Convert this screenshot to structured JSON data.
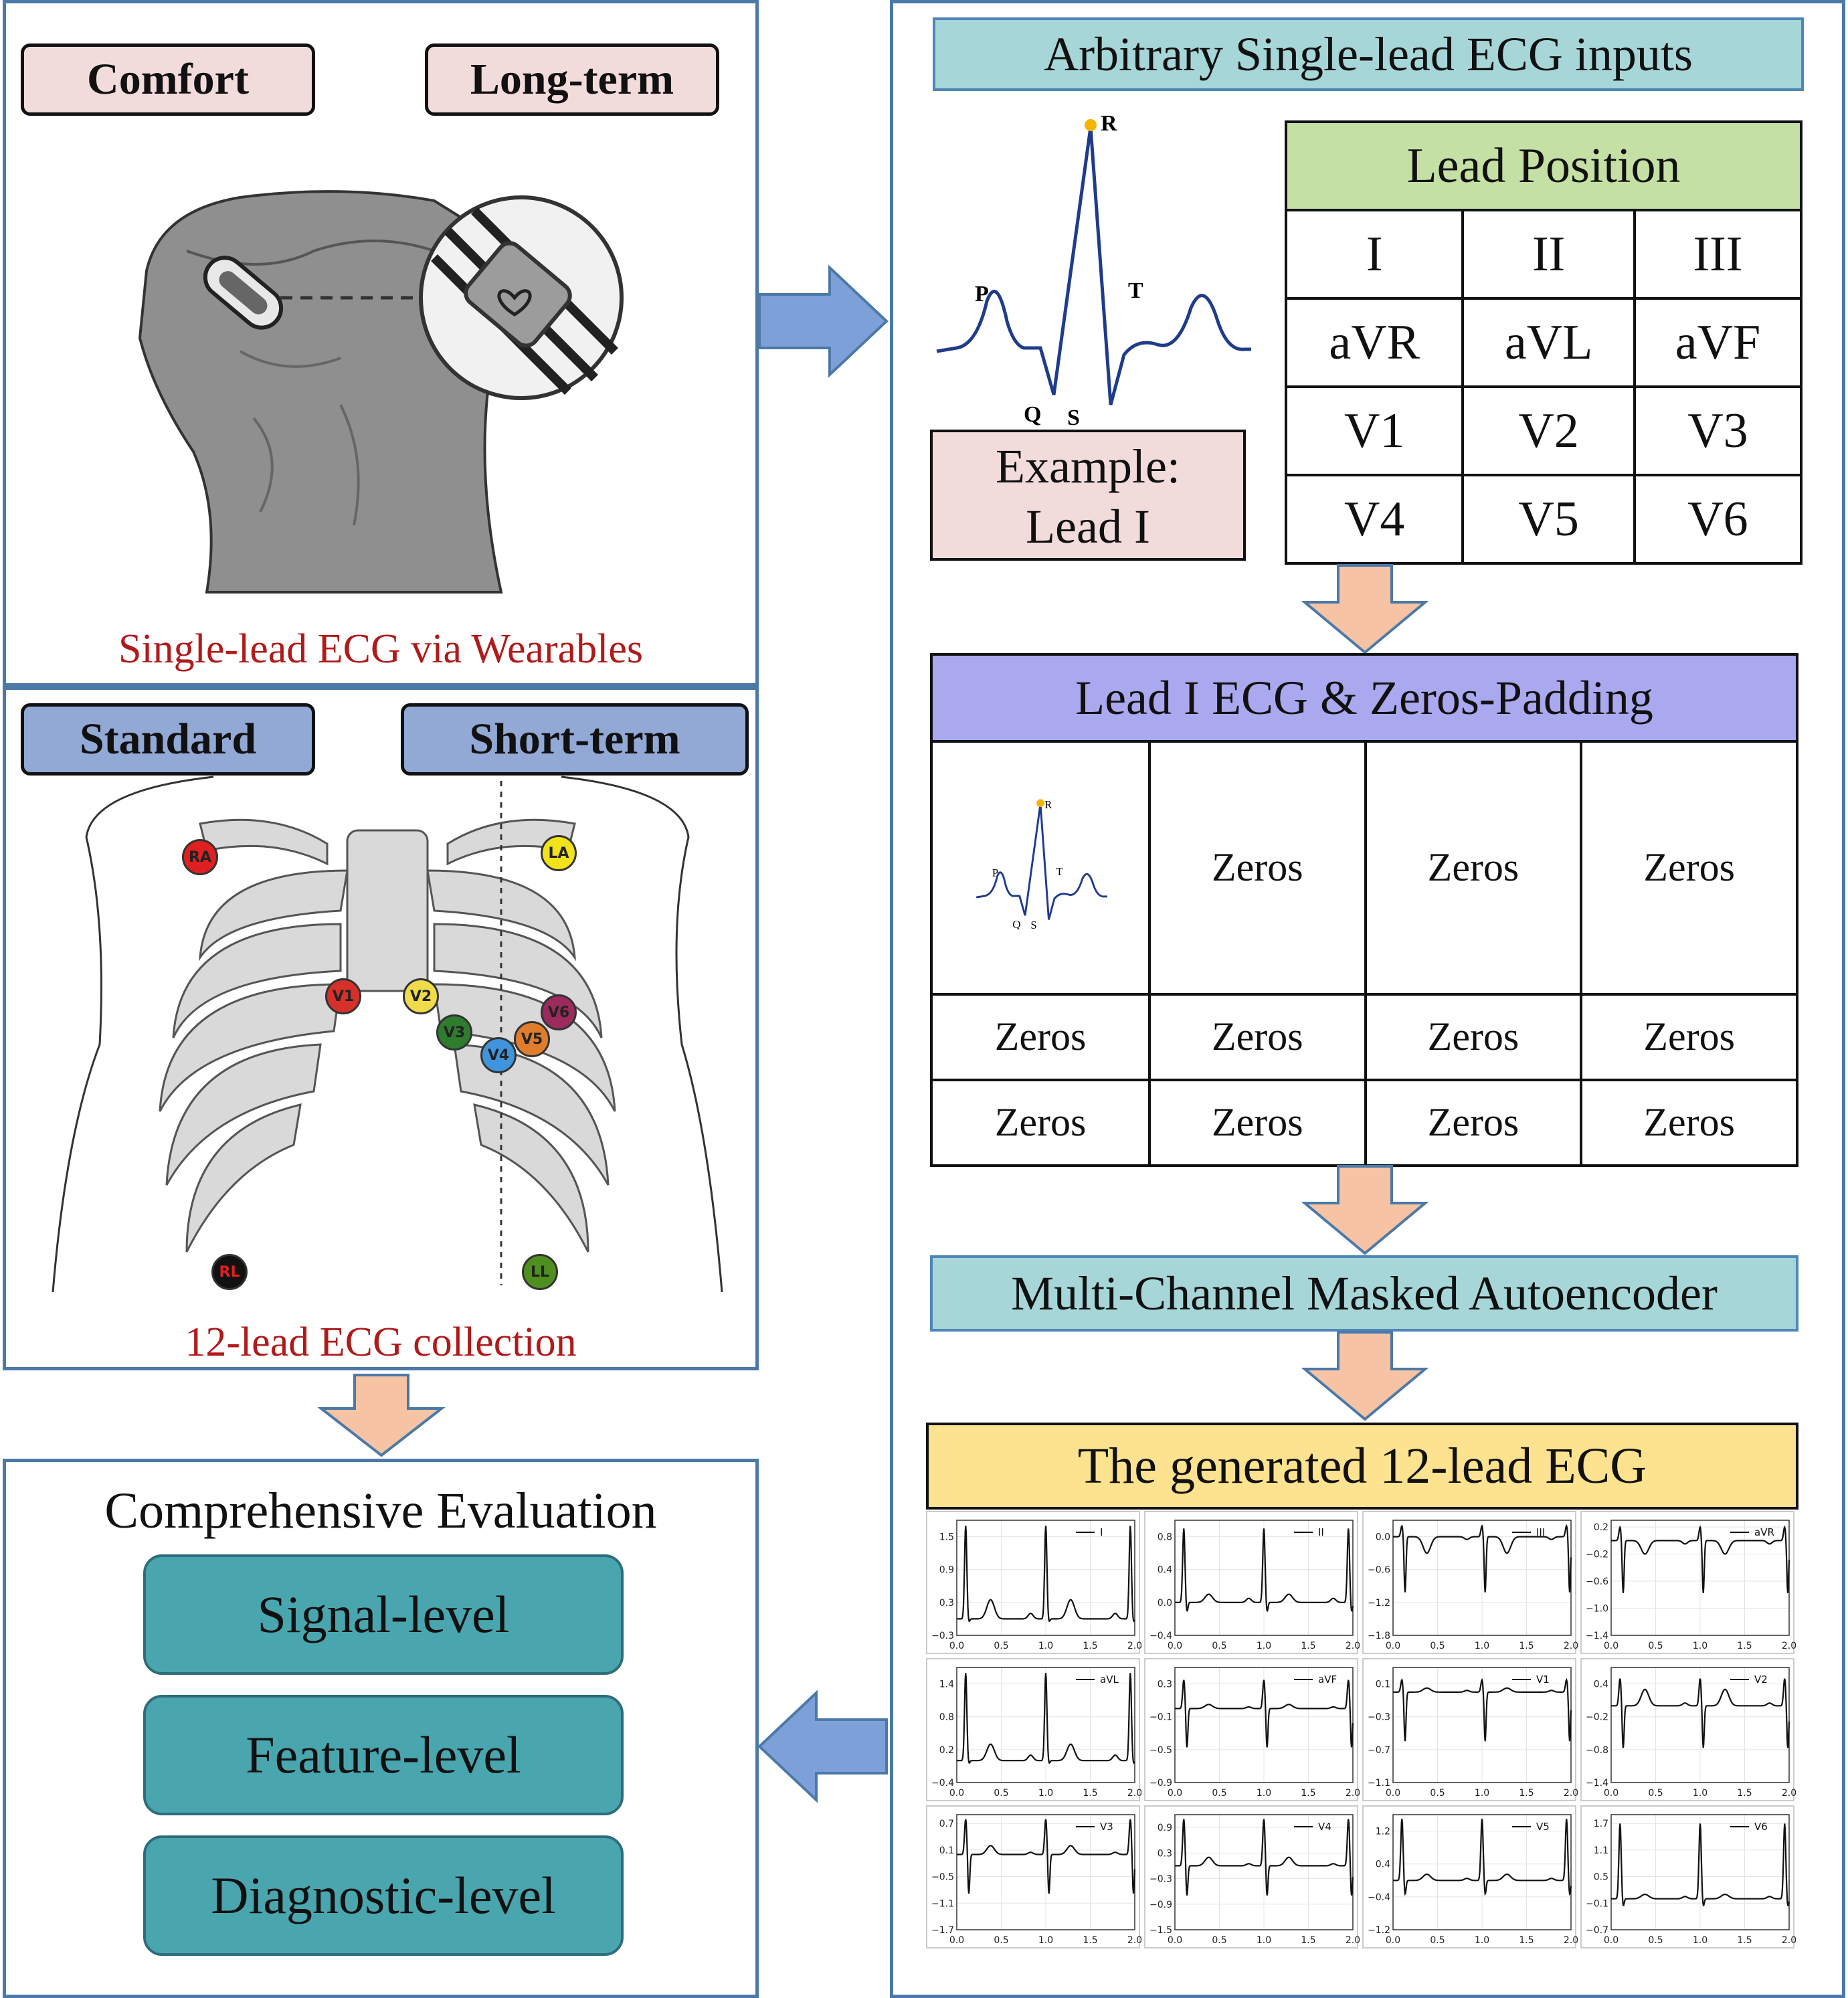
{
  "wearable_panel": {
    "tag_left": "Comfort",
    "tag_right": "Long-term",
    "caption": "Single-lead ECG via Wearables",
    "device_icon": "heart-icon"
  },
  "twelve_lead_panel": {
    "tag_left": "Standard",
    "tag_right": "Short-term",
    "caption": "12-lead ECG collection",
    "electrodes": [
      {
        "label": "RA",
        "color": "#e02020"
      },
      {
        "label": "LA",
        "color": "#f2e21a"
      },
      {
        "label": "V1",
        "color": "#d6302a"
      },
      {
        "label": "V2",
        "color": "#f0dc4a"
      },
      {
        "label": "V3",
        "color": "#2e7d2e"
      },
      {
        "label": "V4",
        "color": "#3f95dd"
      },
      {
        "label": "V5",
        "color": "#e07d2c"
      },
      {
        "label": "V6",
        "color": "#9c2a5c"
      },
      {
        "label": "RL",
        "color": "#111111"
      },
      {
        "label": "LL",
        "color": "#4f8f1f"
      }
    ]
  },
  "evaluation": {
    "title": "Comprehensive Evaluation",
    "levels": [
      "Signal-level",
      "Feature-level",
      "Diagnostic-level"
    ]
  },
  "input_section": {
    "header": "Arbitrary Single-lead ECG inputs",
    "wave_labels": {
      "p": "P",
      "q": "Q",
      "r": "R",
      "s": "S",
      "t": "T"
    },
    "example_line1": "Example:",
    "example_line2": "Lead I",
    "lead_position": {
      "title": "Lead Position",
      "rows": [
        [
          "I",
          "II",
          "III"
        ],
        [
          "aVR",
          "aVL",
          "aVF"
        ],
        [
          "V1",
          "V2",
          "V3"
        ],
        [
          "V4",
          "V5",
          "V6"
        ]
      ]
    }
  },
  "padding_section": {
    "header": "Lead  I ECG & Zeros-Padding",
    "cell_text": "Zeros",
    "rows": [
      [
        "",
        "Zeros",
        "Zeros",
        "Zeros"
      ],
      [
        "Zeros",
        "Zeros",
        "Zeros",
        "Zeros"
      ],
      [
        "Zeros",
        "Zeros",
        "Zeros",
        "Zeros"
      ]
    ]
  },
  "model_label": "Multi-Channel Masked Autoencoder",
  "output_section": {
    "header": "The generated 12-lead ECG"
  },
  "colors": {
    "panel_border": "#4b79a8",
    "tag_pink": "#f2dcdb",
    "tag_blue": "#92a9d6",
    "header_teal": "#a7d6d8",
    "header_green": "#c5e0a4",
    "header_purple": "#aaa8ee",
    "header_yellow": "#fde28f",
    "arrow_orange": "#f6c3a4",
    "arrow_blue": "#7ea0d8",
    "eval_teal": "#4aa6ae"
  },
  "chart_data": {
    "type": "line",
    "title": "The generated 12-lead ECG",
    "xlabel": "",
    "ylabel": "",
    "x_ticks": [
      0.0,
      0.5,
      1.0,
      1.5,
      2.0
    ],
    "x_tick_labels": [
      "0.0",
      "0.5",
      "1.0",
      "1.5",
      "2.0"
    ],
    "xlim": [
      0.0,
      2.0
    ],
    "r_peak_times": [
      0.1,
      1.0,
      1.95
    ],
    "series": [
      {
        "name": "I",
        "yticks": [
          1.5,
          0.9,
          0.3,
          -0.3
        ],
        "ytick_labels": [
          "1.5",
          "0.9",
          "0.3",
          "−0.3"
        ],
        "ylim": [
          -0.3,
          1.8
        ],
        "baseline": 0.0,
        "peak": 1.7,
        "trough": -0.1,
        "t_wave": 0.35,
        "p_wave": 0.1
      },
      {
        "name": "II",
        "yticks": [
          0.8,
          0.4,
          0.0,
          -0.4
        ],
        "ytick_labels": [
          "0.8",
          "0.4",
          "0.0",
          "−0.4"
        ],
        "ylim": [
          -0.4,
          1.0
        ],
        "baseline": 0.0,
        "peak": 0.9,
        "trough": -0.2,
        "t_wave": 0.1,
        "p_wave": 0.05
      },
      {
        "name": "III",
        "yticks": [
          0.0,
          -0.6,
          -1.2,
          -1.8
        ],
        "ytick_labels": [
          "0.0",
          "−0.6",
          "−1.2",
          "−1.8"
        ],
        "ylim": [
          -1.8,
          0.3
        ],
        "baseline": 0.0,
        "peak": 0.2,
        "trough": -1.7,
        "t_wave": -0.3,
        "p_wave": -0.05
      },
      {
        "name": "aVR",
        "yticks": [
          0.2,
          -0.2,
          -0.6,
          -1.0,
          -1.4
        ],
        "ytick_labels": [
          "0.2",
          "−0.2",
          "−0.6",
          "−1.0",
          "−1.4"
        ],
        "ylim": [
          -1.4,
          0.3
        ],
        "baseline": 0.0,
        "peak": 0.2,
        "trough": -1.3,
        "t_wave": -0.2,
        "p_wave": -0.05
      },
      {
        "name": "aVL",
        "yticks": [
          1.4,
          0.8,
          0.2,
          -0.4
        ],
        "ytick_labels": [
          "1.4",
          "0.8",
          "0.2",
          "−0.4"
        ],
        "ylim": [
          -0.4,
          1.7
        ],
        "baseline": 0.0,
        "peak": 1.6,
        "trough": -0.1,
        "t_wave": 0.3,
        "p_wave": 0.1
      },
      {
        "name": "aVF",
        "yticks": [
          0.3,
          -0.1,
          -0.5,
          -0.9
        ],
        "ytick_labels": [
          "0.3",
          "−0.1",
          "−0.5",
          "−0.9"
        ],
        "ylim": [
          -0.9,
          0.5
        ],
        "baseline": 0.0,
        "peak": 0.35,
        "trough": -0.8,
        "t_wave": 0.05,
        "p_wave": 0.02
      },
      {
        "name": "V1",
        "yticks": [
          0.1,
          -0.3,
          -0.7,
          -1.1
        ],
        "ytick_labels": [
          "0.1",
          "−0.3",
          "−0.7",
          "−1.1"
        ],
        "ylim": [
          -1.1,
          0.3
        ],
        "baseline": 0.0,
        "peak": 0.15,
        "trough": -1.0,
        "t_wave": 0.05,
        "p_wave": 0.02
      },
      {
        "name": "V2",
        "yticks": [
          0.4,
          -0.2,
          -0.8,
          -1.4
        ],
        "ytick_labels": [
          "0.4",
          "−0.2",
          "−0.8",
          "−1.4"
        ],
        "ylim": [
          -1.4,
          0.7
        ],
        "baseline": 0.0,
        "peak": 0.5,
        "trough": -1.3,
        "t_wave": 0.3,
        "p_wave": 0.05
      },
      {
        "name": "V3",
        "yticks": [
          0.7,
          0.1,
          -0.5,
          -1.1,
          -1.7
        ],
        "ytick_labels": [
          "0.7",
          "0.1",
          "−0.5",
          "−1.1",
          "−1.7"
        ],
        "ylim": [
          -1.7,
          0.9
        ],
        "baseline": 0.0,
        "peak": 0.8,
        "trough": -1.5,
        "t_wave": 0.2,
        "p_wave": 0.05
      },
      {
        "name": "V4",
        "yticks": [
          0.9,
          0.3,
          -0.3,
          -0.9,
          -1.5
        ],
        "ytick_labels": [
          "0.9",
          "0.3",
          "−0.3",
          "−0.9",
          "−1.5"
        ],
        "ylim": [
          -1.5,
          1.2
        ],
        "baseline": 0.0,
        "peak": 1.1,
        "trough": -1.2,
        "t_wave": 0.2,
        "p_wave": 0.05
      },
      {
        "name": "V5",
        "yticks": [
          1.2,
          0.4,
          -0.4,
          -1.2
        ],
        "ytick_labels": [
          "1.2",
          "0.4",
          "−0.4",
          "−1.2"
        ],
        "ylim": [
          -1.2,
          1.6
        ],
        "baseline": 0.0,
        "peak": 1.5,
        "trough": -0.6,
        "t_wave": 0.15,
        "p_wave": 0.05
      },
      {
        "name": "V6",
        "yticks": [
          1.7,
          1.1,
          0.5,
          -0.1,
          -0.7
        ],
        "ytick_labels": [
          "1.7",
          "1.1",
          "0.5",
          "−0.1",
          "−0.7"
        ],
        "ylim": [
          -0.7,
          1.9
        ],
        "baseline": 0.0,
        "peak": 1.7,
        "trough": -0.3,
        "t_wave": 0.1,
        "p_wave": 0.05
      }
    ]
  }
}
